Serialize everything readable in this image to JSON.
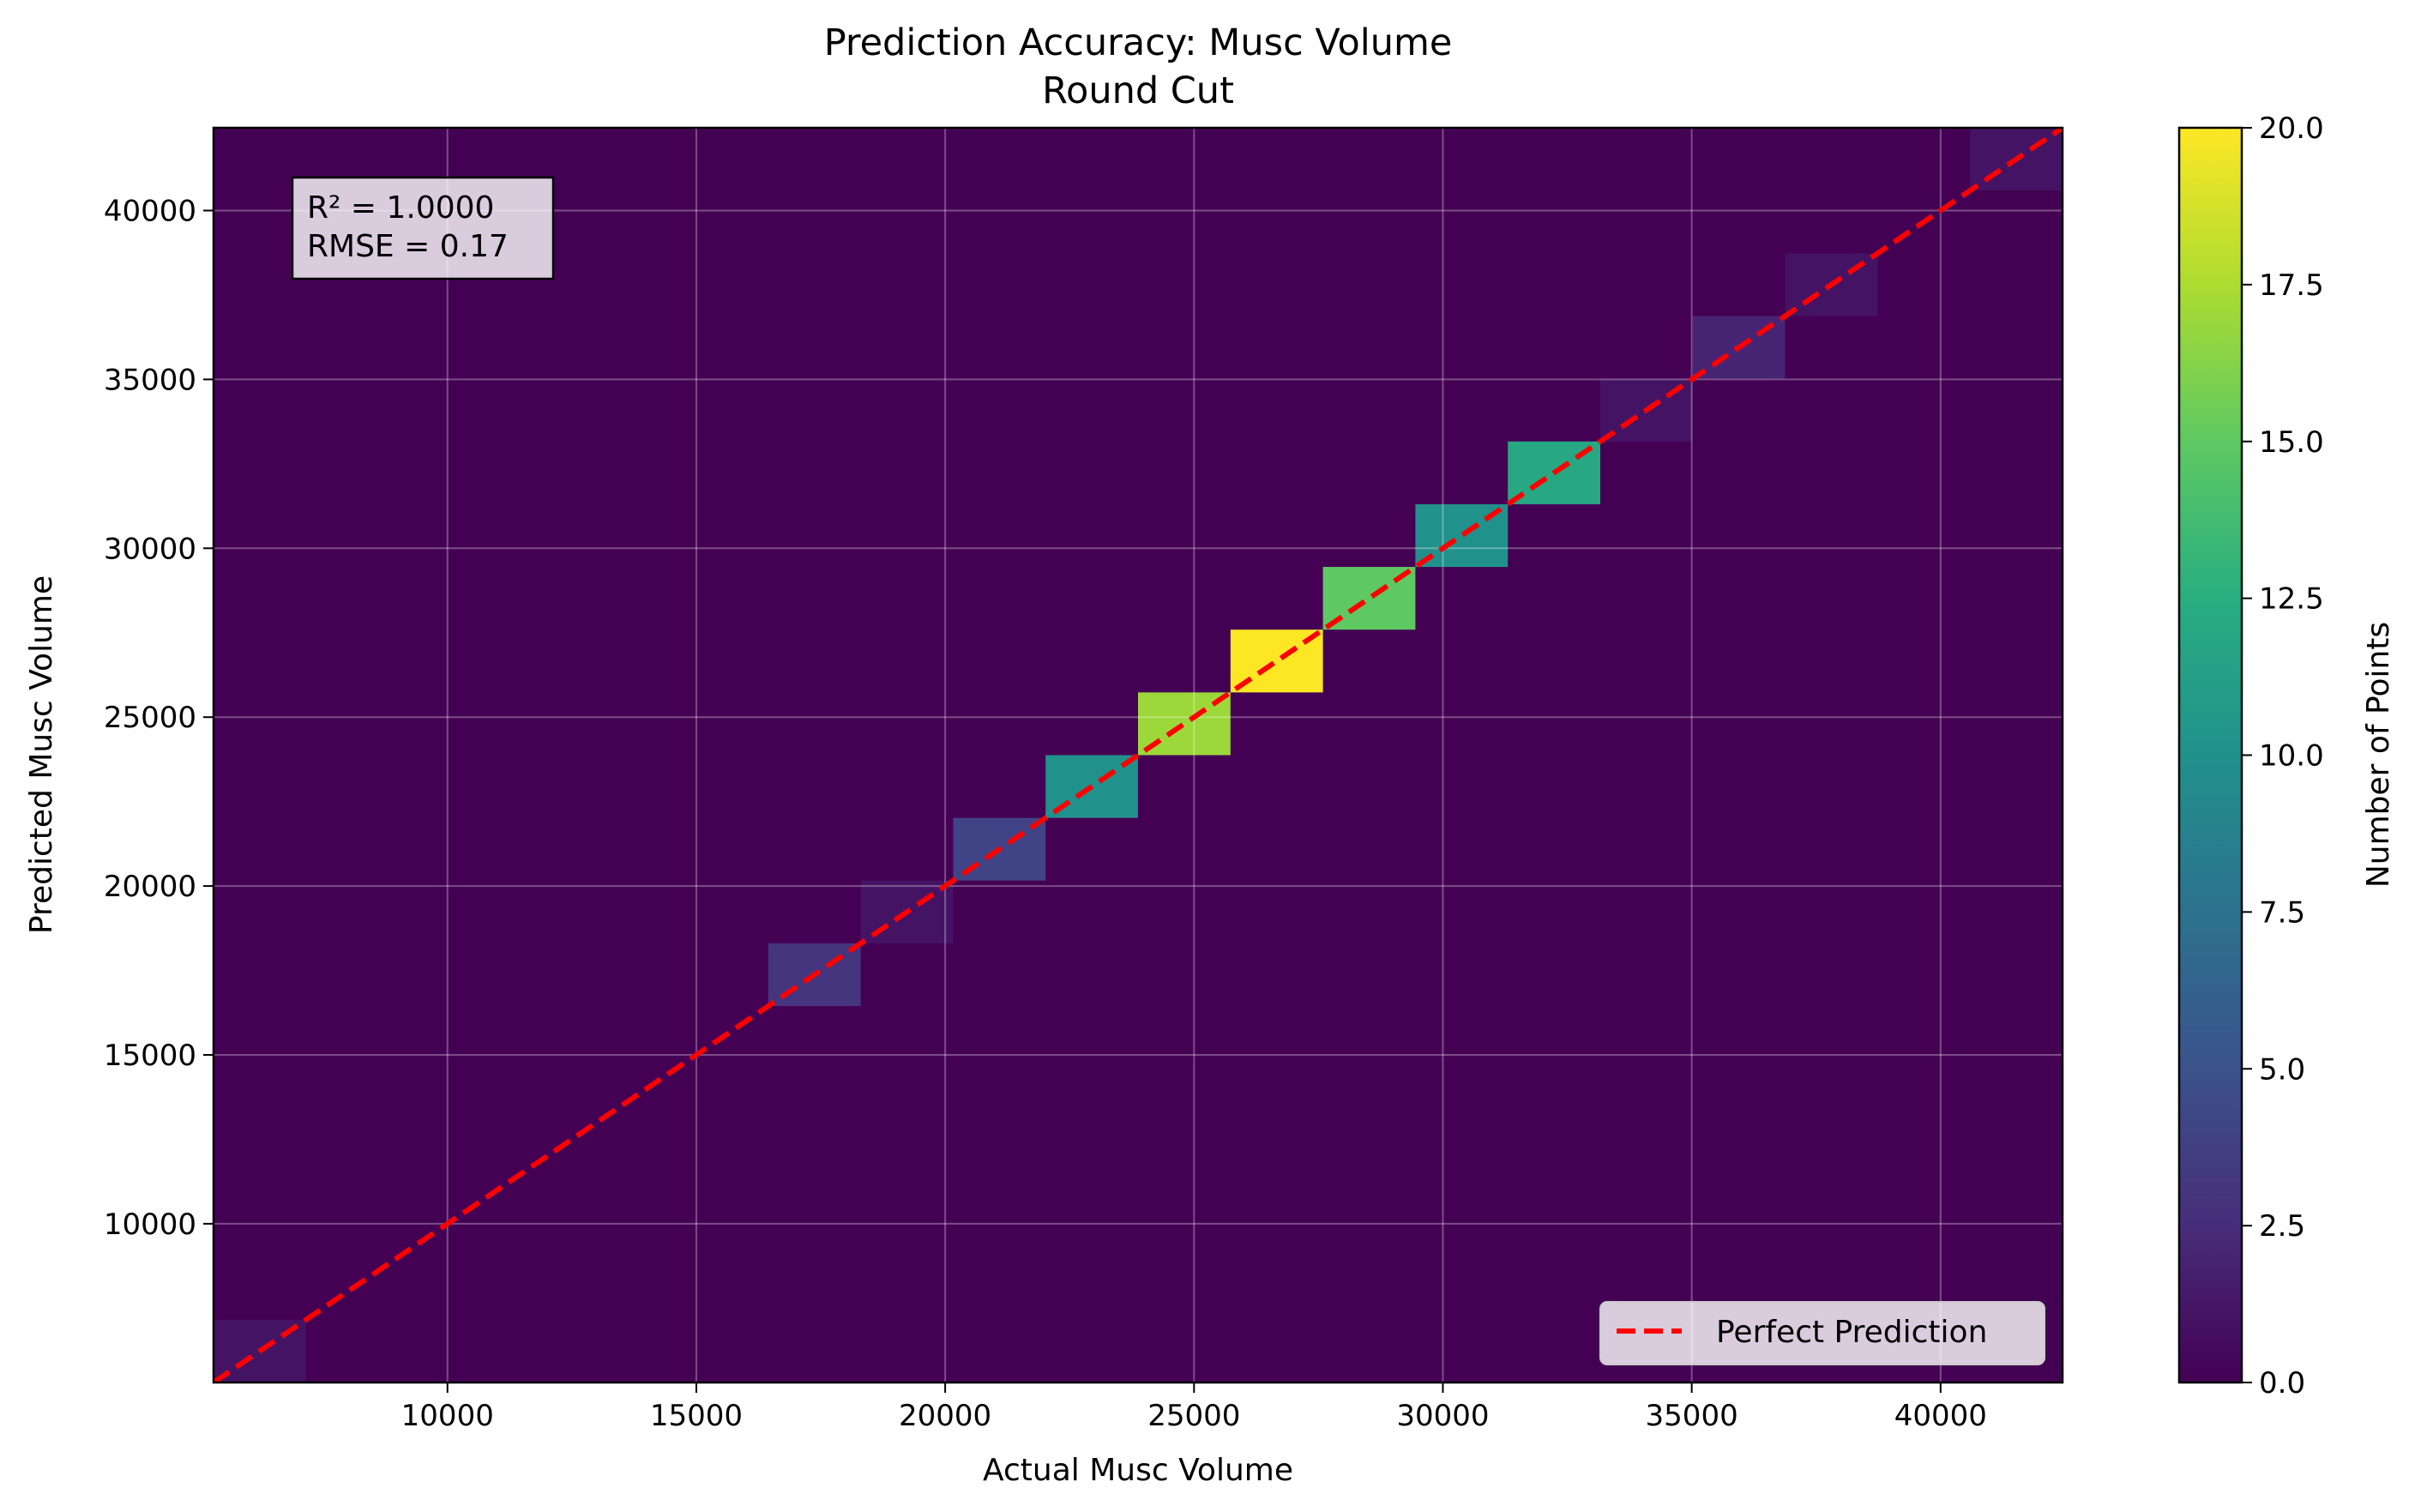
{
  "chart_data": {
    "type": "heatmap",
    "title": "Prediction Accuracy: Musc Volume",
    "subtitle": "Round Cut",
    "xlabel": "Actual Musc Volume",
    "ylabel": "Predicted Musc Volume",
    "xlim": [
      5300,
      42450
    ],
    "ylim": [
      5300,
      42450
    ],
    "xticks": [
      10000,
      15000,
      20000,
      25000,
      30000,
      35000,
      40000
    ],
    "yticks": [
      10000,
      15000,
      20000,
      25000,
      30000,
      35000,
      40000
    ],
    "grid": true,
    "bin_size": 1857.5,
    "bins": [
      {
        "x": [
          5300,
          7157.5
        ],
        "y": [
          5300,
          7157.5
        ],
        "count": 1
      },
      {
        "x": [
          16445,
          18302.5
        ],
        "y": [
          16445,
          18302.5
        ],
        "count": 3
      },
      {
        "x": [
          18302.5,
          20160
        ],
        "y": [
          18302.5,
          20160
        ],
        "count": 1
      },
      {
        "x": [
          20160,
          22017.5
        ],
        "y": [
          20160,
          22017.5
        ],
        "count": 4
      },
      {
        "x": [
          22017.5,
          23875
        ],
        "y": [
          22017.5,
          23875
        ],
        "count": 10
      },
      {
        "x": [
          23875,
          25732.5
        ],
        "y": [
          23875,
          25732.5
        ],
        "count": 17
      },
      {
        "x": [
          25732.5,
          27590
        ],
        "y": [
          25732.5,
          27590
        ],
        "count": 20
      },
      {
        "x": [
          27590,
          29447.5
        ],
        "y": [
          27590,
          29447.5
        ],
        "count": 15
      },
      {
        "x": [
          29447.5,
          31305
        ],
        "y": [
          29447.5,
          31305
        ],
        "count": 10
      },
      {
        "x": [
          31305,
          33162.5
        ],
        "y": [
          31305,
          33162.5
        ],
        "count": 12
      },
      {
        "x": [
          33162.5,
          35020
        ],
        "y": [
          33162.5,
          35020
        ],
        "count": 1
      },
      {
        "x": [
          35020,
          36877.5
        ],
        "y": [
          35020,
          36877.5
        ],
        "count": 2
      },
      {
        "x": [
          36877.5,
          38735
        ],
        "y": [
          36877.5,
          38735
        ],
        "count": 1
      },
      {
        "x": [
          40592.5,
          42450
        ],
        "y": [
          40592.5,
          42450
        ],
        "count": 1
      }
    ],
    "reference_line": {
      "name": "Perfect Prediction",
      "color": "#ff0000",
      "style": "dashed"
    },
    "legend_position": "lower-right",
    "colorbar": {
      "label": "Number of Points",
      "range": [
        0,
        20
      ],
      "ticks": [
        "0.0",
        "2.5",
        "5.0",
        "7.5",
        "10.0",
        "12.5",
        "15.0",
        "17.5",
        "20.0"
      ],
      "colormap": "viridis"
    },
    "stats": [
      "R² = 1.0000",
      "RMSE = 0.17"
    ]
  }
}
